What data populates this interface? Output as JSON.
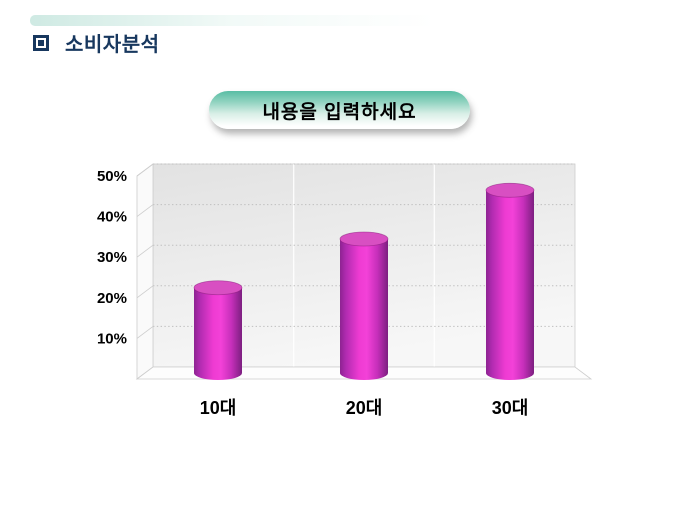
{
  "slide": {
    "title": "소비자분석",
    "title_icon": "square-bullet-icon",
    "title_color": "#17375e",
    "accent_color": "#a7d8cc"
  },
  "callout": {
    "label": "내용을 입력하세요",
    "top_color": "#58bda4",
    "text_color": "#000000"
  },
  "chart_data": {
    "type": "bar",
    "style": "3d-cylinder",
    "title": "",
    "xlabel": "",
    "ylabel": "",
    "categories": [
      "10대",
      "20대",
      "30대"
    ],
    "values": [
      21,
      33,
      45
    ],
    "unit": "%",
    "ylim": [
      0,
      50
    ],
    "ytick_step": 10,
    "ytick_labels": [
      "10%",
      "20%",
      "30%",
      "40%",
      "50%"
    ],
    "grid": true,
    "legend": "none",
    "bar_color": "#ee3bd2",
    "bar_edge_color": "#8d2391",
    "bar_top_color": "#d84fc2",
    "wall_color": "#e9e9e9",
    "label_color": "#000000"
  }
}
